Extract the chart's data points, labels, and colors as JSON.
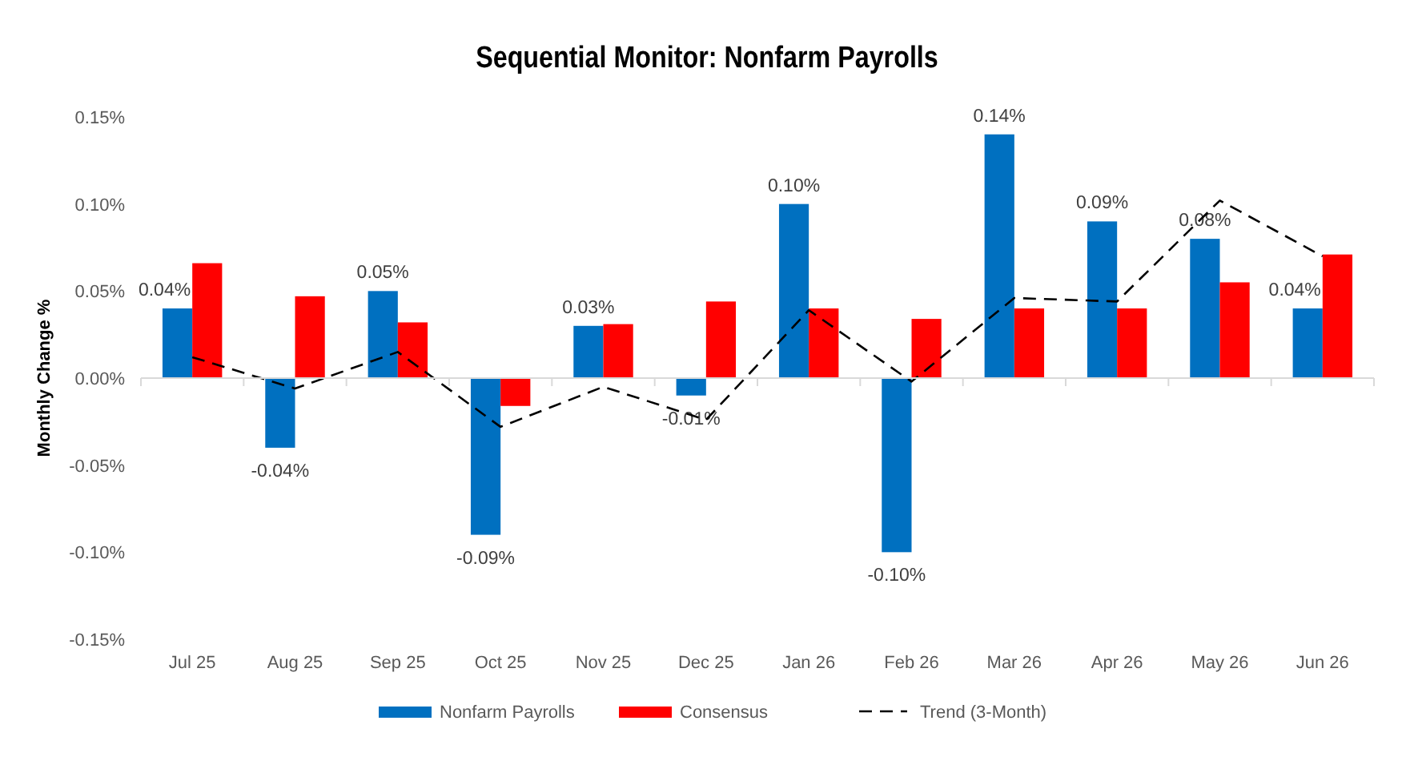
{
  "chart_data": {
    "type": "bar",
    "title": "Sequential Monitor: Nonfarm Payrolls",
    "ylabel": "Monthly Change %",
    "categories": [
      "Jul 25",
      "Aug 25",
      "Sep 25",
      "Oct 25",
      "Nov 25",
      "Dec 25",
      "Jan 26",
      "Feb 26",
      "Mar 26",
      "Apr 26",
      "May 26",
      "Jun 26"
    ],
    "series": [
      {
        "name": "Nonfarm Payrolls",
        "color": "#0070c0",
        "values": [
          0.04,
          -0.04,
          0.05,
          -0.09,
          0.03,
          -0.01,
          0.1,
          -0.1,
          0.14,
          0.09,
          0.08,
          0.04
        ],
        "value_labels": [
          "0.04%",
          "-0.04%",
          "0.05%",
          "-0.09%",
          "0.03%",
          "-0.01%",
          "0.10%",
          "-0.10%",
          "0.14%",
          "0.09%",
          "0.08%",
          "0.04%"
        ]
      },
      {
        "name": "Consensus",
        "color": "#ff0000",
        "values": [
          0.066,
          0.047,
          0.032,
          -0.016,
          0.031,
          0.044,
          0.04,
          0.034,
          0.04,
          0.04,
          0.055,
          0.071
        ]
      },
      {
        "name": "Trend (3-Month)",
        "type": "line",
        "color": "#000000",
        "line_style": "dashed",
        "values": [
          0.012,
          -0.006,
          0.015,
          -0.028,
          -0.005,
          -0.024,
          0.039,
          -0.002,
          0.046,
          0.044,
          0.102,
          0.07
        ]
      }
    ],
    "ylim": [
      -0.15,
      0.15
    ],
    "yticks": [
      {
        "value": -0.15,
        "label": "-0.15%"
      },
      {
        "value": -0.1,
        "label": "-0.10%"
      },
      {
        "value": -0.05,
        "label": "-0.05%"
      },
      {
        "value": 0,
        "label": "0.00%"
      },
      {
        "value": 0.05,
        "label": "0.05%"
      },
      {
        "value": 0.1,
        "label": "0.10%"
      },
      {
        "value": 0.15,
        "label": "0.15%"
      }
    ],
    "legend": "bottom"
  }
}
